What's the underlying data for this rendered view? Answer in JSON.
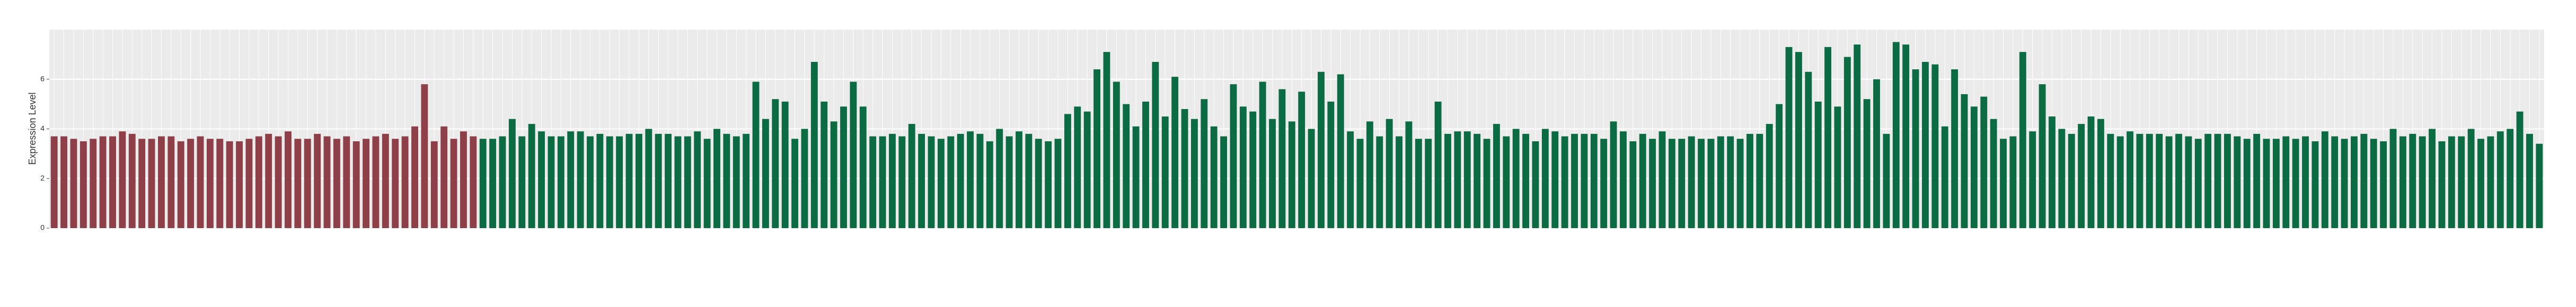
{
  "chart_data": {
    "type": "bar",
    "y_label": "Expression Level",
    "ylim": [
      0,
      8
    ],
    "yticks": [
      0,
      2,
      4,
      6
    ],
    "grid": true,
    "categories": [
      null,
      null,
      null,
      null,
      null,
      null,
      null,
      null,
      null,
      null,
      null,
      null,
      null,
      null,
      null,
      null,
      null,
      null,
      null,
      null,
      null,
      null,
      null,
      null,
      null,
      null,
      null,
      null,
      null,
      null,
      null,
      null,
      null,
      null,
      null,
      null,
      null,
      null,
      null,
      null,
      null,
      null,
      null,
      null,
      null,
      null,
      null,
      null,
      null,
      null,
      null,
      null,
      null,
      null,
      null,
      null,
      null,
      null,
      null,
      null,
      null,
      null,
      null,
      null,
      null,
      null,
      null,
      null,
      null,
      null,
      null,
      null,
      null,
      null,
      null,
      null,
      null,
      null,
      null,
      null,
      null,
      null,
      null,
      null,
      null,
      null,
      null,
      null,
      null,
      null,
      null,
      null,
      null,
      null,
      null,
      null,
      null,
      null,
      null,
      null,
      null,
      null,
      null,
      null,
      null,
      null,
      null,
      null,
      null,
      null,
      null,
      null,
      null,
      null,
      null,
      null,
      null,
      null,
      null,
      null,
      null,
      null,
      null,
      null,
      null,
      null,
      null,
      null,
      null,
      null,
      null,
      null,
      null,
      null,
      null,
      null,
      null,
      null,
      null,
      null,
      null,
      null,
      null,
      null,
      null,
      null,
      null,
      null,
      null,
      null,
      null,
      null,
      null,
      null,
      null,
      null,
      null,
      null,
      null,
      null,
      null,
      null,
      null,
      null,
      null,
      null,
      null,
      null,
      null,
      null,
      null,
      null,
      null,
      null,
      null,
      null,
      null,
      null,
      null,
      null,
      null,
      null,
      null,
      null,
      null,
      null,
      null,
      null,
      null,
      null,
      null,
      null,
      null,
      null,
      null,
      null,
      null,
      null,
      null,
      null,
      null,
      null,
      null,
      null,
      null,
      null,
      null,
      null,
      null,
      null,
      null,
      null,
      null,
      null,
      null,
      null,
      null,
      null,
      null,
      null,
      null,
      null,
      null,
      null,
      null,
      null,
      null,
      null,
      null,
      null,
      null,
      null,
      null,
      null,
      null,
      null,
      null,
      null,
      null,
      null,
      null,
      null,
      null,
      null,
      null,
      null,
      null,
      null,
      null,
      null,
      null,
      null,
      null,
      null,
      null,
      null
    ],
    "values": [
      3.7,
      3.7,
      3.6,
      3.5,
      3.6,
      3.7,
      3.7,
      3.9,
      3.8,
      3.6,
      3.6,
      3.7,
      3.7,
      3.5,
      3.6,
      3.7,
      3.6,
      3.6,
      3.5,
      3.5,
      3.6,
      3.7,
      3.8,
      3.7,
      3.9,
      3.6,
      3.6,
      3.8,
      3.7,
      3.6,
      3.7,
      3.5,
      3.6,
      3.7,
      3.8,
      3.6,
      3.7,
      4.1,
      5.8,
      3.5,
      4.1,
      3.6,
      3.9,
      3.7,
      3.6,
      3.6,
      3.7,
      4.4,
      3.7,
      4.2,
      3.9,
      3.7,
      3.7,
      3.9,
      3.9,
      3.7,
      3.8,
      3.7,
      3.7,
      3.8,
      3.8,
      4.0,
      3.8,
      3.8,
      3.7,
      3.7,
      3.9,
      3.6,
      4.0,
      3.8,
      3.7,
      3.8,
      5.9,
      4.4,
      5.2,
      5.1,
      3.6,
      4.0,
      6.7,
      5.1,
      4.3,
      4.9,
      5.9,
      4.9,
      3.7,
      3.7,
      3.8,
      3.7,
      4.2,
      3.8,
      3.7,
      3.6,
      3.7,
      3.8,
      3.9,
      3.8,
      3.5,
      4.0,
      3.7,
      3.9,
      3.8,
      3.6,
      3.5,
      3.6,
      4.6,
      4.9,
      4.7,
      6.4,
      7.1,
      5.9,
      5.0,
      4.1,
      5.1,
      6.7,
      4.5,
      6.1,
      4.8,
      4.4,
      5.2,
      4.1,
      3.7,
      5.8,
      4.9,
      4.7,
      5.9,
      4.4,
      5.6,
      4.3,
      5.5,
      4.0,
      6.3,
      5.1,
      6.2,
      3.9,
      3.6,
      4.3,
      3.7,
      4.4,
      3.7,
      4.3,
      3.6,
      3.6,
      5.1,
      3.8,
      3.9,
      3.9,
      3.8,
      3.6,
      4.2,
      3.7,
      4.0,
      3.8,
      3.5,
      4.0,
      3.9,
      3.7,
      3.8,
      3.8,
      3.8,
      3.6,
      4.3,
      3.9,
      3.5,
      3.8,
      3.6,
      3.9,
      3.6,
      3.6,
      3.7,
      3.6,
      3.6,
      3.7,
      3.7,
      3.6,
      3.8,
      3.8,
      4.2,
      5.0,
      7.3,
      7.1,
      6.3,
      5.1,
      7.3,
      4.9,
      6.9,
      7.4,
      5.2,
      6.0,
      3.8,
      7.5,
      7.4,
      6.4,
      6.7,
      6.6,
      4.1,
      6.4,
      5.4,
      4.9,
      5.3,
      4.4,
      3.6,
      3.7,
      7.1,
      3.9,
      5.8,
      4.5,
      4.0,
      3.8,
      4.2,
      4.5,
      4.4,
      3.8,
      3.7,
      3.9,
      3.8,
      3.8,
      3.8,
      3.7,
      3.8,
      3.7,
      3.6,
      3.8,
      3.8,
      3.8,
      3.7,
      3.6,
      3.8,
      3.6,
      3.6,
      3.7,
      3.6,
      3.7,
      3.5,
      3.9,
      3.7,
      3.6,
      3.7,
      3.8,
      3.6,
      3.5,
      4.0,
      3.7,
      3.8,
      3.7,
      4.0,
      3.5,
      3.7,
      3.7,
      4.0,
      3.6,
      3.7,
      3.9,
      4.0,
      4.7,
      3.8,
      3.4
    ],
    "colors": [
      "#8f3f48",
      "#8f3f48",
      "#8f3f48",
      "#8f3f48",
      "#8f3f48",
      "#8f3f48",
      "#8f3f48",
      "#8f3f48",
      "#8f3f48",
      "#8f3f48",
      "#8f3f48",
      "#8f3f48",
      "#8f3f48",
      "#8f3f48",
      "#8f3f48",
      "#8f3f48",
      "#8f3f48",
      "#8f3f48",
      "#8f3f48",
      "#8f3f48",
      "#8f3f48",
      "#8f3f48",
      "#8f3f48",
      "#8f3f48",
      "#8f3f48",
      "#8f3f48",
      "#8f3f48",
      "#8f3f48",
      "#8f3f48",
      "#8f3f48",
      "#8f3f48",
      "#8f3f48",
      "#8f3f48",
      "#8f3f48",
      "#8f3f48",
      "#8f3f48",
      "#8f3f48",
      "#8f3f48",
      "#8f3f48",
      "#8f3f48",
      "#8f3f48",
      "#8f3f48",
      "#8f3f48",
      "#8f3f48",
      "#0b6b43",
      "#0b6b43",
      "#0b6b43",
      "#0b6b43",
      "#0b6b43",
      "#0b6b43",
      "#0b6b43",
      "#0b6b43",
      "#0b6b43",
      "#0b6b43",
      "#0b6b43",
      "#0b6b43",
      "#0b6b43",
      "#0b6b43",
      "#0b6b43",
      "#0b6b43",
      "#0b6b43",
      "#0b6b43",
      "#0b6b43",
      "#0b6b43",
      "#0b6b43",
      "#0b6b43",
      "#0b6b43",
      "#0b6b43",
      "#0b6b43",
      "#0b6b43",
      "#0b6b43",
      "#0b6b43",
      "#0b6b43",
      "#0b6b43",
      "#0b6b43",
      "#0b6b43",
      "#0b6b43",
      "#0b6b43",
      "#0b6b43",
      "#0b6b43",
      "#0b6b43",
      "#0b6b43",
      "#0b6b43",
      "#0b6b43",
      "#0b6b43",
      "#0b6b43",
      "#0b6b43",
      "#0b6b43",
      "#0b6b43",
      "#0b6b43",
      "#0b6b43",
      "#0b6b43",
      "#0b6b43",
      "#0b6b43",
      "#0b6b43",
      "#0b6b43",
      "#0b6b43",
      "#0b6b43",
      "#0b6b43",
      "#0b6b43",
      "#0b6b43",
      "#0b6b43",
      "#0b6b43",
      "#0b6b43",
      "#0b6b43",
      "#0b6b43",
      "#0b6b43",
      "#0b6b43",
      "#0b6b43",
      "#0b6b43",
      "#0b6b43",
      "#0b6b43",
      "#0b6b43",
      "#0b6b43",
      "#0b6b43",
      "#0b6b43",
      "#0b6b43",
      "#0b6b43",
      "#0b6b43",
      "#0b6b43",
      "#0b6b43",
      "#0b6b43",
      "#0b6b43",
      "#0b6b43",
      "#0b6b43",
      "#0b6b43",
      "#0b6b43",
      "#0b6b43",
      "#0b6b43",
      "#0b6b43",
      "#0b6b43",
      "#0b6b43",
      "#0b6b43",
      "#0b6b43",
      "#0b6b43",
      "#0b6b43",
      "#0b6b43",
      "#0b6b43",
      "#0b6b43",
      "#0b6b43",
      "#0b6b43",
      "#0b6b43",
      "#0b6b43",
      "#0b6b43",
      "#0b6b43",
      "#0b6b43",
      "#0b6b43",
      "#0b6b43",
      "#0b6b43",
      "#0b6b43",
      "#0b6b43",
      "#0b6b43",
      "#0b6b43",
      "#0b6b43",
      "#0b6b43",
      "#0b6b43",
      "#0b6b43",
      "#0b6b43",
      "#0b6b43",
      "#0b6b43",
      "#0b6b43",
      "#0b6b43",
      "#0b6b43",
      "#0b6b43",
      "#0b6b43",
      "#0b6b43",
      "#0b6b43",
      "#0b6b43",
      "#0b6b43",
      "#0b6b43",
      "#0b6b43",
      "#0b6b43",
      "#0b6b43",
      "#0b6b43",
      "#0b6b43",
      "#0b6b43",
      "#0b6b43",
      "#0b6b43",
      "#0b6b43",
      "#0b6b43",
      "#0b6b43",
      "#0b6b43",
      "#0b6b43",
      "#0b6b43",
      "#0b6b43",
      "#0b6b43",
      "#0b6b43",
      "#0b6b43",
      "#0b6b43",
      "#0b6b43",
      "#0b6b43",
      "#0b6b43",
      "#0b6b43",
      "#0b6b43",
      "#0b6b43",
      "#0b6b43",
      "#0b6b43",
      "#0b6b43",
      "#0b6b43",
      "#0b6b43",
      "#0b6b43",
      "#0b6b43",
      "#0b6b43",
      "#0b6b43",
      "#0b6b43",
      "#0b6b43",
      "#0b6b43",
      "#0b6b43",
      "#0b6b43",
      "#0b6b43",
      "#0b6b43",
      "#0b6b43",
      "#0b6b43",
      "#0b6b43",
      "#0b6b43",
      "#0b6b43",
      "#0b6b43",
      "#0b6b43",
      "#0b6b43",
      "#0b6b43",
      "#0b6b43",
      "#0b6b43",
      "#0b6b43",
      "#0b6b43",
      "#0b6b43",
      "#0b6b43",
      "#0b6b43",
      "#0b6b43",
      "#0b6b43",
      "#0b6b43",
      "#0b6b43",
      "#0b6b43",
      "#0b6b43",
      "#0b6b43",
      "#0b6b43",
      "#0b6b43",
      "#0b6b43",
      "#0b6b43",
      "#0b6b43",
      "#0b6b43",
      "#0b6b43",
      "#0b6b43",
      "#0b6b43",
      "#0b6b43",
      "#0b6b43",
      "#0b6b43",
      "#0b6b43",
      "#0b6b43",
      "#0b6b43",
      "#0b6b43",
      "#0b6b43",
      "#0b6b43",
      "#0b6b43",
      "#0b6b43",
      "#0b6b43",
      "#0b6b43",
      "#0b6b43",
      "#0b6b43",
      "#0b6b43",
      "#0b6b43",
      "#0b6b43",
      "#0b6b43",
      "#0b6b43",
      "#0b6b43",
      "#0b6b43",
      "#0b6b43"
    ]
  }
}
